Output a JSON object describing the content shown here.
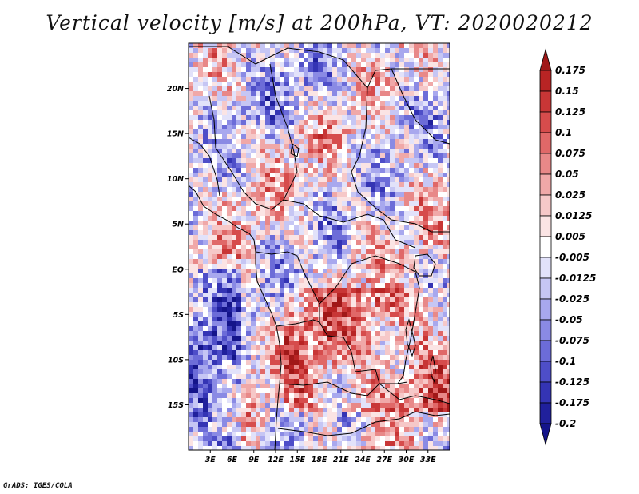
{
  "title": "Vertical velocity [m/s] at 200hPa, VT: 2020020212",
  "footer": "GrADS: IGES/COLA",
  "map": {
    "projection": "latlon",
    "lon_range": [
      0,
      36
    ],
    "lat_range": [
      -20,
      25
    ],
    "lat_labels": [
      "20N",
      "15N",
      "10N",
      "5N",
      "EQ",
      "5S",
      "10S",
      "15S"
    ],
    "lat_values": [
      20,
      15,
      10,
      5,
      0,
      -5,
      -10,
      -15
    ],
    "lon_labels": [
      "3E",
      "6E",
      "9E",
      "12E",
      "15E",
      "18E",
      "21E",
      "24E",
      "27E",
      "30E",
      "33E"
    ],
    "lon_values": [
      3,
      6,
      9,
      12,
      15,
      18,
      21,
      24,
      27,
      30,
      33
    ]
  },
  "colorbar": {
    "labels": [
      "0.175",
      "0.15",
      "0.125",
      "0.1",
      "0.075",
      "0.05",
      "0.025",
      "0.0125",
      "0.005",
      "-0.005",
      "-0.0125",
      "-0.025",
      "-0.05",
      "-0.075",
      "-0.1",
      "-0.125",
      "-0.175",
      "-0.2"
    ],
    "colors": [
      "#a01818",
      "#b82424",
      "#c83636",
      "#d64c4c",
      "#e06868",
      "#e88888",
      "#f0a8a8",
      "#f6c8c8",
      "#fbe4e4",
      "#ffffff",
      "#e2e2fa",
      "#c6c6f4",
      "#a8a8ee",
      "#8a8ae4",
      "#6c6cd8",
      "#4e4ec8",
      "#3434b4",
      "#20209c",
      "#14148a"
    ]
  },
  "chart_data": {
    "type": "heatmap",
    "title": "Vertical velocity [m/s] at 200hPa, VT: 2020020212",
    "variable": "vertical velocity",
    "units": "m/s",
    "level": "200hPa",
    "valid_time": "2020020212",
    "x_range": [
      0,
      36
    ],
    "y_range": [
      -20,
      25
    ],
    "color_levels": [
      -0.2,
      -0.175,
      -0.125,
      -0.1,
      -0.075,
      -0.05,
      -0.025,
      -0.0125,
      -0.005,
      0.005,
      0.0125,
      0.025,
      0.05,
      0.075,
      0.1,
      0.125,
      0.15,
      0.175
    ]
  }
}
